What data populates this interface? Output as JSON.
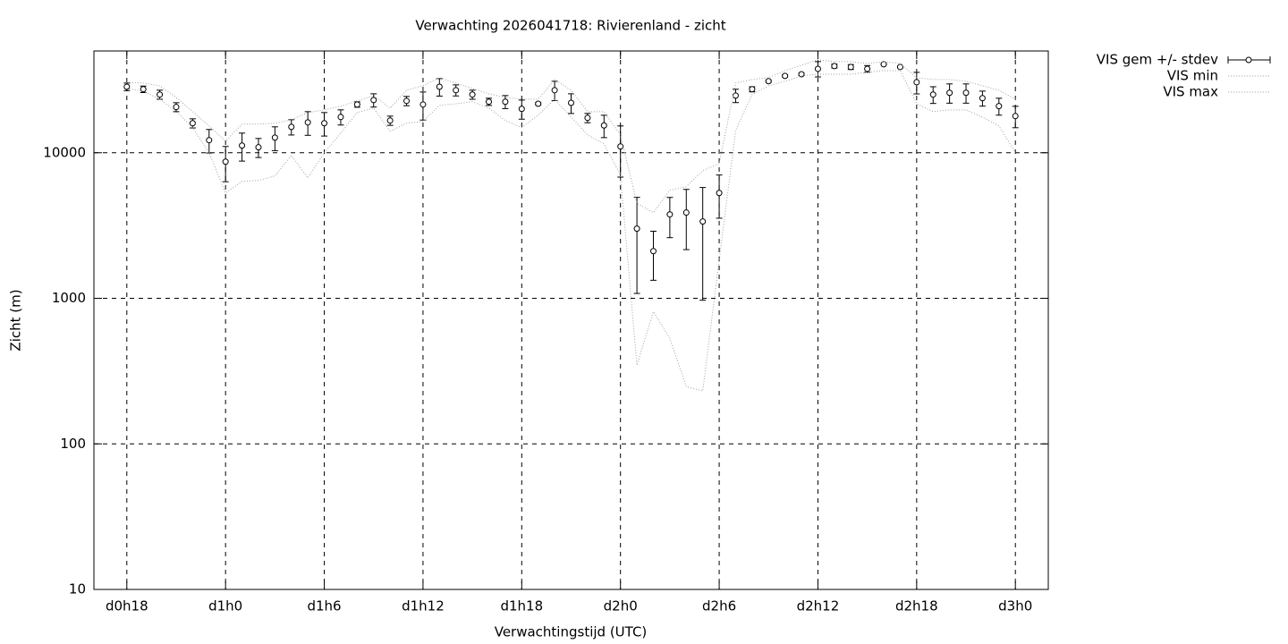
{
  "chart_data": {
    "type": "errorline",
    "title": "Verwachting 2026041718: Rivierenland - zicht",
    "x_label": "Verwachtingstijd (UTC)",
    "y_label": "Zicht (m)",
    "log_y": true,
    "grid": true,
    "legend": "outside-top-right",
    "xlim": [
      16,
      74
    ],
    "ylim": [
      10,
      50000
    ],
    "xticks": [
      {
        "value": 18,
        "label": "d0h18"
      },
      {
        "value": 24,
        "label": "d1h0"
      },
      {
        "value": 30,
        "label": "d1h6"
      },
      {
        "value": 36,
        "label": "d1h12"
      },
      {
        "value": 42,
        "label": "d1h18"
      },
      {
        "value": 48,
        "label": "d2h0"
      },
      {
        "value": 54,
        "label": "d2h6"
      },
      {
        "value": 60,
        "label": "d2h12"
      },
      {
        "value": 66,
        "label": "d2h18"
      },
      {
        "value": 72,
        "label": "d3h0"
      }
    ],
    "yticks": [
      10,
      100,
      1000,
      10000
    ],
    "x": [
      18,
      19,
      20,
      21,
      22,
      23,
      24,
      25,
      26,
      27,
      28,
      29,
      30,
      31,
      32,
      33,
      34,
      35,
      36,
      37,
      38,
      39,
      40,
      41,
      42,
      43,
      44,
      45,
      46,
      47,
      48,
      49,
      50,
      51,
      52,
      53,
      54,
      55,
      56,
      57,
      58,
      59,
      60,
      61,
      62,
      63,
      64,
      65,
      66,
      67,
      68,
      69,
      70,
      71,
      72
    ],
    "series": [
      {
        "name": "VIS gem +/- stdev",
        "color": "#000000",
        "values": [
          28400,
          27300,
          25100,
          20600,
          15950,
          12200,
          8680,
          11200,
          10900,
          12700,
          15050,
          16160,
          15950,
          17600,
          21450,
          23000,
          16630,
          22700,
          21450,
          28400,
          26900,
          25100,
          22400,
          22400,
          20000,
          21700,
          26900,
          22000,
          17350,
          15400,
          11040,
          3010,
          2110,
          3770,
          3880,
          3370,
          5290,
          24700,
          27300,
          31000,
          33700,
          34600,
          37700,
          39400,
          38800,
          37700,
          40500,
          38800,
          30500,
          25100,
          25800,
          25800,
          23700,
          20900,
          17850
        ],
        "stdev": [
          1700,
          1400,
          1800,
          1460,
          1150,
          2240,
          2360,
          2440,
          1630,
          2360,
          1810,
          2990,
          2930,
          2100,
          920,
          2400,
          1210,
          1660,
          4680,
          3900,
          2350,
          1800,
          1280,
          2300,
          3000,
          400,
          4070,
          3400,
          1270,
          2700,
          4240,
          1930,
          780,
          1160,
          1720,
          2400,
          1740,
          2600,
          1100,
          600,
          600,
          600,
          4550,
          1200,
          1500,
          2000,
          400,
          600,
          5150,
          3300,
          3900,
          3900,
          2800,
          2780,
          3000
        ]
      },
      {
        "name": "VIS min",
        "color": "#a0a0a0",
        "values": [
          27650,
          26500,
          23330,
          19150,
          14900,
          10000,
          5290,
          6360,
          6450,
          6930,
          9580,
          6730,
          10000,
          13640,
          18880,
          20270,
          14040,
          15950,
          16390,
          21170,
          21700,
          22370,
          20270,
          16630,
          14900,
          18100,
          23330,
          17570,
          13260,
          11520,
          7030,
          347,
          809,
          530,
          247,
          231,
          1840,
          14250,
          25100,
          28850,
          30970,
          33700,
          34600,
          34600,
          34600,
          35650,
          36650,
          36650,
          21700,
          19150,
          19700,
          19700,
          17570,
          15280,
          10000
        ]
      },
      {
        "name": "VIS max",
        "color": "#a0a0a0",
        "values": [
          30530,
          30100,
          28850,
          23990,
          19150,
          15280,
          12020,
          15720,
          15720,
          15950,
          16860,
          18880,
          19700,
          20850,
          22700,
          24700,
          20270,
          26900,
          28850,
          32750,
          30100,
          27650,
          25400,
          23990,
          23330,
          23330,
          31850,
          26900,
          19150,
          19150,
          13260,
          4500,
          3880,
          5520,
          5850,
          7540,
          8440,
          30100,
          31850,
          32750,
          36650,
          39900,
          43450,
          42250,
          42250,
          41050,
          42250,
          41050,
          32750,
          31850,
          31850,
          30970,
          28850,
          26900,
          23330
        ]
      }
    ]
  }
}
